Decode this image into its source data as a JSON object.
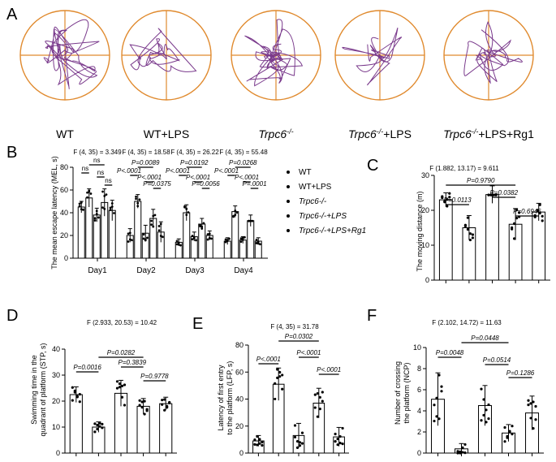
{
  "panelA": {
    "letter": "A",
    "maze_labels": [
      {
        "text": "WT",
        "italic": ""
      },
      {
        "text": "WT+LPS",
        "italic": ""
      },
      {
        "text": "",
        "italic": "Trpc6",
        "sup": "-/-"
      },
      {
        "text": "+LPS",
        "italic": "Trpc6",
        "sup": "-/-"
      },
      {
        "text": "+LPS+Rg1",
        "italic": "Trpc6",
        "sup": "-/-"
      }
    ],
    "colors": {
      "pool": "#e08a2e",
      "path": "#7a3a8c"
    }
  },
  "chart_data": [
    {
      "panel": "B",
      "type": "bar",
      "ylabel": "The mean escape latency (MEL, s)",
      "ylim": [
        0,
        80
      ],
      "yticks": [
        0,
        20,
        40,
        60,
        80
      ],
      "categories": [
        "Day1",
        "Day2",
        "Day3",
        "Day4"
      ],
      "series": [
        {
          "name": "WT",
          "values": [
            45,
            20,
            14,
            15
          ],
          "errors": [
            5,
            6,
            3,
            3
          ]
        },
        {
          "name": "WT+LPS",
          "values": [
            53,
            50,
            40,
            41
          ],
          "errors": [
            8,
            6,
            7,
            5
          ]
        },
        {
          "name": "Trpc6-/-",
          "values": [
            38,
            22,
            19,
            16
          ],
          "errors": [
            6,
            7,
            4,
            3
          ]
        },
        {
          "name": "Trpc6-/-+LPS",
          "values": [
            49,
            35,
            30,
            33
          ],
          "errors": [
            12,
            8,
            5,
            5
          ]
        },
        {
          "name": "Trpc6-/-+LPS+Rg1",
          "values": [
            42,
            23,
            20,
            15
          ],
          "errors": [
            9,
            9,
            4,
            3
          ]
        }
      ],
      "anova": [
        "F (4, 35) = 3.349",
        "F (4, 35) = 18.58",
        "F (4, 35) = 26.22",
        "F (4, 35) = 55.48"
      ],
      "annotations": [
        [
          "ns",
          "ns",
          "ns",
          "ns"
        ],
        [
          "P<.0001",
          "P=0.0089",
          "P<.0001",
          "P=0.0375"
        ],
        [
          "P<.0001",
          "P=0.0192",
          "P<.0001",
          "P=0.0056"
        ],
        [
          "P<.0001",
          "P=0.0268",
          "P<.0001",
          "P=.0001"
        ]
      ],
      "legend": [
        "WT",
        "WT+LPS",
        "Trpc6-/-",
        "Trpc6-/-+LPS",
        "Trpc6-/-+LPS+Rg1"
      ]
    },
    {
      "panel": "C",
      "type": "bar",
      "title": "F (1.882, 13.17) = 9.611",
      "ylabel": "The moving distance (m)",
      "ylim": [
        0,
        30
      ],
      "yticks": [
        0,
        10,
        20,
        30
      ],
      "values": [
        23,
        15,
        24.5,
        16,
        19.5
      ],
      "errors": [
        2,
        3.5,
        2.5,
        4.5,
        2.5
      ],
      "annotations": [
        "P=0.0113",
        "P=0.9790",
        "P=0.0382",
        "P=0.6946"
      ]
    },
    {
      "panel": "D",
      "type": "bar",
      "title": "F (2.933, 20.53) = 10.42",
      "ylabel": "Swimming time in the quadrant of platform (STP, s)",
      "ylim": [
        0,
        40
      ],
      "yticks": [
        0,
        10,
        20,
        30,
        40
      ],
      "values": [
        22.5,
        10,
        23,
        18,
        19
      ],
      "errors": [
        3,
        2,
        5,
        3,
        2.5
      ],
      "annotations": [
        "P=0.0016",
        "P=0.0282",
        "P=0.3839",
        "P=0.9778"
      ]
    },
    {
      "panel": "E",
      "type": "bar",
      "title": "F (4, 35) = 31.78",
      "ylabel": "Latency of first entry to the platform (LFP, s)",
      "ylim": [
        0,
        80
      ],
      "yticks": [
        0,
        20,
        40,
        60,
        80
      ],
      "values": [
        9,
        51,
        13,
        37,
        12
      ],
      "errors": [
        4,
        12,
        9,
        11,
        7
      ],
      "annotations": [
        "P<.0001",
        "P=0.0302",
        "P<.0001",
        "P<.0001"
      ]
    },
    {
      "panel": "F",
      "type": "bar",
      "title": "F (2.102, 14.72) = 11.63",
      "ylabel": "Number of crossing the platform (NCP)",
      "ylim": [
        0,
        10
      ],
      "yticks": [
        0,
        2,
        4,
        6,
        8,
        10
      ],
      "values": [
        5.1,
        0.4,
        4.5,
        1.9,
        3.8
      ],
      "errors": [
        2.5,
        0.5,
        1.9,
        0.8,
        1.6
      ],
      "annotations": [
        "P=0.0048",
        "P=0.0448",
        "P=0.0514",
        "P=0.1286"
      ]
    }
  ]
}
